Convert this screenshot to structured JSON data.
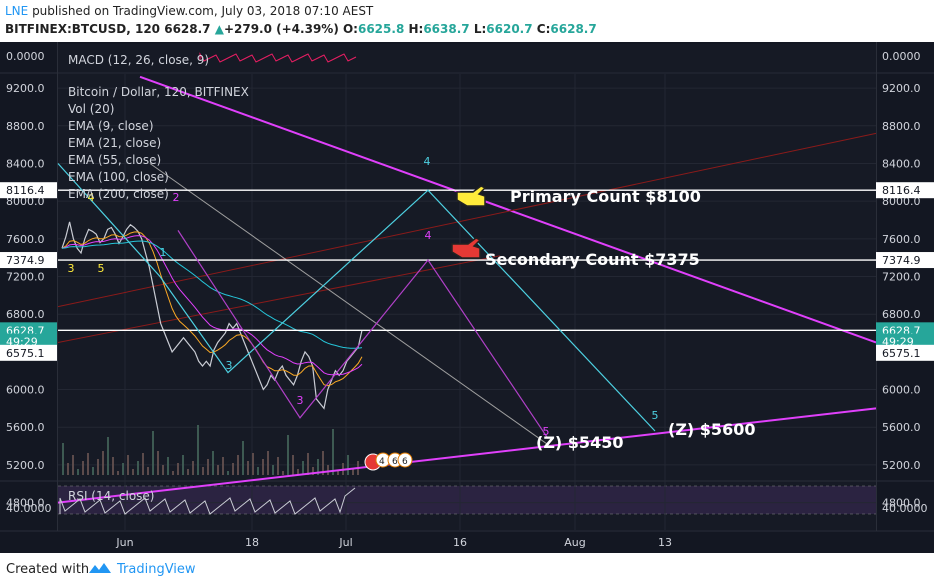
{
  "header": {
    "publisher": "LNE",
    "published_text": " published on TradingView.com, July 03, 2018 07:10 AEST",
    "symbol": "BITFINEX:BTCUSD, 120",
    "last": "6628.7",
    "change_arrow": "▲",
    "change": "+279.0 (+4.39%)",
    "o_label": "O:",
    "o_value": "6625.8",
    "h_label": "H:",
    "h_value": "6638.7",
    "l_label": "L:",
    "l_value": "6620.7",
    "c_label": "C:",
    "c_value": "6628.7"
  },
  "footer": {
    "created_with": "Created with",
    "brand": "TradingView"
  },
  "colors": {
    "up": "#26a69a",
    "magenta": "#e040fb",
    "cyan": "#4dd0e1",
    "pane_bg": "#161a25",
    "axis_bg": "#131722"
  },
  "chart_data": [
    {
      "type": "line",
      "pane": "macd",
      "legend": "MACD (12, 26, close, 9)",
      "y_ticks": [
        "0.0000"
      ],
      "y_right_ticks": [
        "0.0000"
      ]
    },
    {
      "type": "line",
      "pane": "price",
      "title": "Bitcoin / Dollar, 120, BITFINEX",
      "legend": [
        "Vol (20)",
        "EMA (9, close)",
        "EMA (21, close)",
        "EMA (55, close)",
        "EMA (100, close)",
        "EMA (200, close)"
      ],
      "ylim": [
        4700,
        9350
      ],
      "y_ticks": [
        9200,
        8800,
        8400,
        8000,
        7600,
        7200,
        6800,
        6000,
        5600,
        5200,
        4800
      ],
      "y_tick_labels": [
        "9200.0",
        "8800.0",
        "8400.0",
        "8000.0",
        "7600.0",
        "7200.0",
        "6800.0",
        "6000.0",
        "5600.0",
        "5200.0",
        "4800.0"
      ],
      "x_tick_labels": [
        "Jun",
        "18",
        "Jul",
        "16",
        "Aug",
        "13"
      ],
      "price_markers": [
        {
          "label": "8116.4",
          "value": 8116.4
        },
        {
          "label": "7374.9",
          "value": 7374.9
        },
        {
          "label": "6628.7",
          "value": 6628.7,
          "highlight": true
        },
        {
          "label": "49:29",
          "value": 6510,
          "highlight": true
        },
        {
          "label": "6575.1",
          "value": 6390
        }
      ],
      "horizontal_levels": [
        8116.4,
        7374.9,
        6628.7
      ],
      "close_series": [
        7500,
        7620,
        7780,
        7600,
        7500,
        7450,
        7600,
        7700,
        7680,
        7650,
        7560,
        7600,
        7700,
        7720,
        7650,
        7550,
        7620,
        7700,
        7750,
        7720,
        7680,
        7600,
        7450,
        7300,
        7100,
        6900,
        6700,
        6600,
        6500,
        6400,
        6450,
        6500,
        6550,
        6500,
        6450,
        6400,
        6300,
        6250,
        6300,
        6250,
        6420,
        6500,
        6550,
        6600,
        6700,
        6650,
        6700,
        6600,
        6500,
        6400,
        6300,
        6200,
        6100,
        6000,
        6050,
        6150,
        6100,
        6200,
        6250,
        6150,
        6100,
        6050,
        6150,
        6300,
        6400,
        6350,
        6250,
        5900,
        5850,
        5800,
        6000,
        6100,
        6200,
        6150,
        6200,
        6300,
        6350,
        6400,
        6450,
        6628.7
      ],
      "wave_labels_primary": [
        {
          "label": "4",
          "value": 8116.4
        },
        {
          "label": "5",
          "value": 5560
        },
        {
          "label": "3",
          "value": 6180
        },
        {
          "label": "1",
          "value": 7200
        }
      ],
      "wave_labels_secondary": [
        {
          "label": "2",
          "value": 7690
        },
        {
          "label": "3",
          "value": 5700
        },
        {
          "label": "4",
          "value": 7374.9
        },
        {
          "label": "5",
          "value": 5480
        }
      ],
      "wave_labels_early": [
        {
          "label": "4",
          "value": 7860
        },
        {
          "label": "3",
          "value": 7050
        },
        {
          "label": "5",
          "value": 7050
        }
      ],
      "annotations": [
        {
          "text": "Primary Count $8100",
          "value": 7920
        },
        {
          "text": "Secondary Count $7375",
          "value": 7200
        },
        {
          "text": "(Z) $5450",
          "value": 5250
        },
        {
          "text": "(Z) $5600",
          "value": 5300
        }
      ],
      "event_badges": [
        "4",
        "6",
        "6"
      ]
    },
    {
      "type": "line",
      "pane": "rsi",
      "legend": "RSI (14, close)",
      "y_ticks": [
        "40.0000"
      ],
      "y_right_ticks": [
        "40.0000"
      ]
    }
  ]
}
